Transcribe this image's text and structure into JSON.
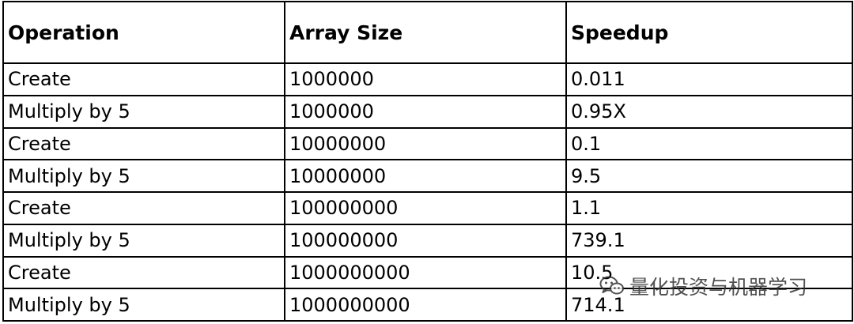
{
  "table": {
    "headers": [
      "Operation",
      "Array Size",
      "Speedup"
    ],
    "rows": [
      [
        "Create",
        "1000000",
        "0.011"
      ],
      [
        "Multiply by 5",
        "1000000",
        "0.95X"
      ],
      [
        "Create",
        "10000000",
        "0.1"
      ],
      [
        "Multiply by 5",
        "10000000",
        "9.5"
      ],
      [
        "Create",
        "100000000",
        "1.1"
      ],
      [
        "Multiply by 5",
        "100000000",
        "739.1"
      ],
      [
        "Create",
        "1000000000",
        "10.5"
      ],
      [
        "Multiply by 5",
        "1000000000",
        "714.1"
      ]
    ]
  },
  "watermark": {
    "text": "量化投资与机器学习",
    "icon": "wechat-icon"
  }
}
